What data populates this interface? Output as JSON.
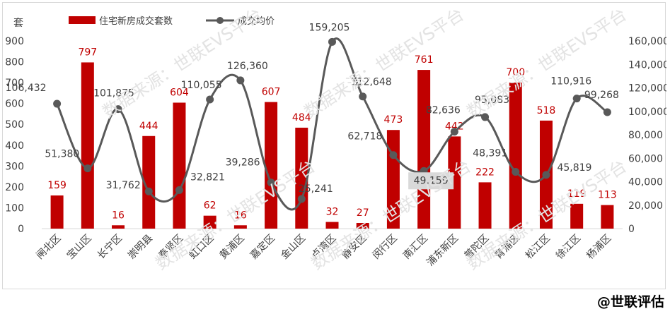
{
  "chart_data": {
    "type": "bar+line",
    "categories": [
      "闸北区",
      "宝山区",
      "长宁区",
      "崇明县",
      "奉贤区",
      "虹口区",
      "黄浦区",
      "嘉定区",
      "金山区",
      "卢湾区",
      "静安区",
      "闵行区",
      "南汇区",
      "浦东新区",
      "普陀区",
      "青浦区",
      "松江区",
      "徐江区",
      "杨浦区"
    ],
    "series": [
      {
        "name": "住宅新房成交套数",
        "type": "bar",
        "axis": "left",
        "color": "#c00000",
        "values": [
          159,
          797,
          16,
          444,
          604,
          62,
          16,
          607,
          484,
          32,
          27,
          473,
          761,
          442,
          222,
          700,
          518,
          119,
          113
        ]
      },
      {
        "name": "成交均价",
        "type": "line",
        "axis": "right",
        "color": "#595959",
        "values": [
          106432,
          51380,
          101875,
          31762,
          32821,
          110055,
          126360,
          39286,
          25241,
          159205,
          112648,
          62718,
          49159,
          82636,
          95083,
          48391,
          45819,
          110916,
          99268
        ]
      }
    ],
    "line_labels": [
      "106,432",
      "51,380",
      "101,875",
      "31,762",
      "32,821",
      "110,055",
      "126,360",
      "39,286",
      "25,241",
      "159,205",
      "112,648",
      "62,718",
      "49,159",
      "82,636",
      "95,083",
      "48,391",
      "45,819",
      "110,916",
      "99,268"
    ],
    "left_axis": {
      "unit": "套",
      "ylim": [
        0,
        900
      ],
      "ticks": [
        "0",
        "100",
        "200",
        "300",
        "400",
        "500",
        "600",
        "700",
        "800",
        "900"
      ]
    },
    "right_axis": {
      "ylim": [
        0,
        160000
      ],
      "ticks": [
        "0",
        "20,000",
        "40,000",
        "60,000",
        "80,000",
        "100,000",
        "120,000",
        "140,000",
        "160,000"
      ]
    },
    "legend_position": "top-left",
    "grid": false
  },
  "watermark_text": "数据来源：世联EVS平台",
  "brand": "@世联评估"
}
